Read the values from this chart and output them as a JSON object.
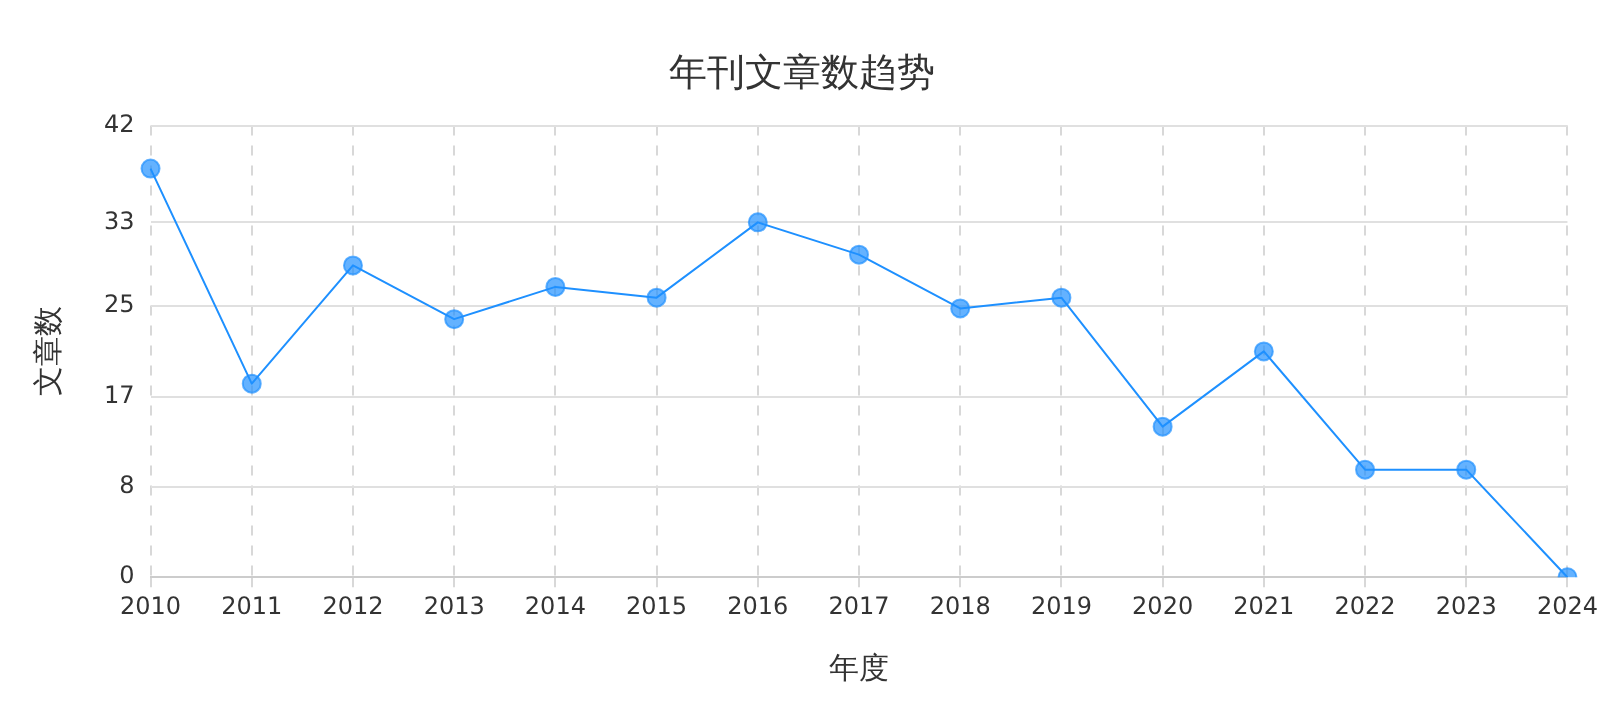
{
  "chart_data": {
    "type": "line",
    "title": "年刊文章数趋势",
    "xlabel": "年度",
    "ylabel": "文章数",
    "categories": [
      "2010",
      "2011",
      "2012",
      "2013",
      "2014",
      "2015",
      "2016",
      "2017",
      "2018",
      "2019",
      "2020",
      "2021",
      "2022",
      "2023",
      "2024"
    ],
    "series": [
      {
        "color": "#1e90ff",
        "values": [
          38,
          18,
          29,
          24,
          27,
          26,
          33,
          30,
          25,
          26,
          14,
          21,
          10,
          10,
          0
        ]
      }
    ],
    "ylim": [
      0,
      42
    ],
    "yticks": [
      0,
      {
        "value": 8.4,
        "label": "8"
      },
      {
        "value": 16.8,
        "label": "17"
      },
      {
        "value": 25.2,
        "label": "25"
      },
      33,
      42
    ],
    "grid": true,
    "marker": "circle",
    "line_style": "solid",
    "legend": false
  }
}
